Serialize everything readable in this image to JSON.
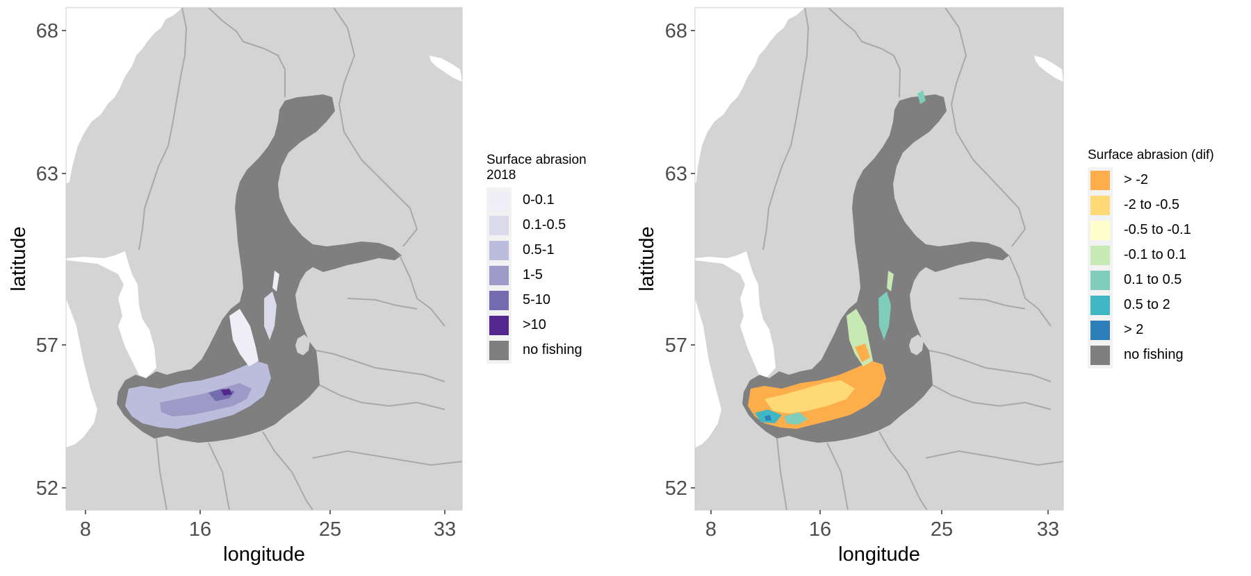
{
  "panels": [
    {
      "x_label": "longitude",
      "y_label": "latitude",
      "x_ticks": [
        "8",
        "16",
        "25",
        "33"
      ],
      "y_ticks": [
        "68",
        "63",
        "57",
        "52"
      ],
      "legend": {
        "title": "Surface abrasion\n 2018",
        "items": [
          {
            "label": "0-0.1",
            "color": "#efedf5"
          },
          {
            "label": "0.1-0.5",
            "color": "#dadaeb"
          },
          {
            "label": "0.5-1",
            "color": "#bcbddc"
          },
          {
            "label": "1-5",
            "color": "#9e9ac8"
          },
          {
            "label": "5-10",
            "color": "#756bb1"
          },
          {
            "label": ">10",
            "color": "#54278f"
          },
          {
            "label": "no fishing",
            "color": "#7f7f7f"
          }
        ]
      }
    },
    {
      "x_label": "longitude",
      "y_label": "latitude",
      "x_ticks": [
        "8",
        "16",
        "25",
        "33"
      ],
      "y_ticks": [
        "68",
        "63",
        "57",
        "52"
      ],
      "legend": {
        "title": "Surface abrasion (dif)",
        "items": [
          {
            "label": "> -2",
            "color": "#fdae4b"
          },
          {
            "label": "-2 to -0.5",
            "color": "#fed976"
          },
          {
            "label": "-0.5 to -0.1",
            "color": "#ffffcc"
          },
          {
            "label": "-0.1 to 0.1",
            "color": "#c7e9b4"
          },
          {
            "label": "0.1 to 0.5",
            "color": "#7fcdbb"
          },
          {
            "label": "0.5 to 2",
            "color": "#41b6c4"
          },
          {
            "label": "> 2",
            "color": "#2c7fb8"
          },
          {
            "label": "no fishing",
            "color": "#7f7f7f"
          }
        ]
      }
    }
  ],
  "map_colors": {
    "land": "#d4d4d4",
    "sea": "#ffffff",
    "no_fishing_sea": "#7f7f7f",
    "border": "#a8a8a8"
  }
}
